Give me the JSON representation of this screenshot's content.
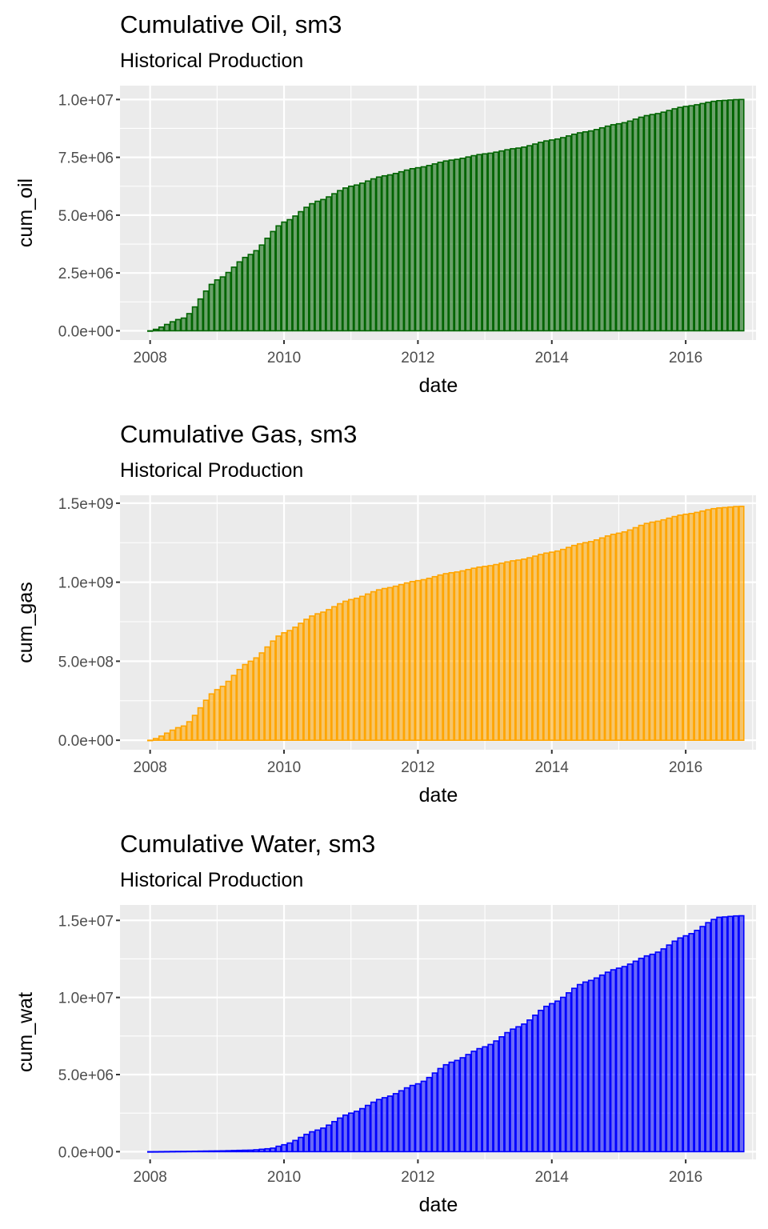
{
  "chart_data": [
    {
      "type": "bar",
      "title": "Cumulative Oil, sm3",
      "subtitle": "Historical Production",
      "xlabel": "date",
      "ylabel": "cum_oil",
      "fill_color": "#006400",
      "outline_color": "#006400",
      "xlim": [
        2007.55,
        2017.05
      ],
      "ylim": [
        -400000.0,
        10600000.0
      ],
      "x_ticks": [
        2008,
        2010,
        2012,
        2014,
        2016
      ],
      "x_tick_labels": [
        "2008",
        "2010",
        "2012",
        "2014",
        "2016"
      ],
      "y_ticks": [
        0,
        2500000,
        5000000,
        7500000,
        10000000
      ],
      "y_tick_labels": [
        "0.0e+00",
        "2.5e+06",
        "5.0e+06",
        "7.5e+06",
        "1.0e+07"
      ],
      "grid": true,
      "frequency": "monthly",
      "x_start": 2008.0,
      "x_end": 2016.8,
      "anchor_x": [
        2008.0,
        2008.5,
        2009.0,
        2009.5,
        2010.0,
        2010.5,
        2011.0,
        2011.5,
        2012.0,
        2012.5,
        2013.0,
        2013.5,
        2014.0,
        2014.5,
        2015.0,
        2015.5,
        2016.0,
        2016.5,
        2016.8
      ],
      "anchor_y": [
        0,
        550000,
        2200000,
        3300000,
        4700000,
        5600000,
        6250000,
        6700000,
        7050000,
        7380000,
        7650000,
        7900000,
        8250000,
        8600000,
        8950000,
        9350000,
        9700000,
        9950000,
        10000000
      ]
    },
    {
      "type": "bar",
      "title": "Cumulative Gas, sm3",
      "subtitle": "Historical Production",
      "xlabel": "date",
      "ylabel": "cum_gas",
      "fill_color": "#FFA500",
      "outline_color": "#FFA500",
      "xlim": [
        2007.55,
        2017.05
      ],
      "ylim": [
        -60000000.0,
        1550000000.0
      ],
      "x_ticks": [
        2008,
        2010,
        2012,
        2014,
        2016
      ],
      "x_tick_labels": [
        "2008",
        "2010",
        "2012",
        "2014",
        "2016"
      ],
      "y_ticks": [
        0,
        500000000,
        1000000000,
        1500000000
      ],
      "y_tick_labels": [
        "0.0e+00",
        "5.0e+08",
        "1.0e+09",
        "1.5e+09"
      ],
      "grid": true,
      "frequency": "monthly",
      "x_start": 2008.0,
      "x_end": 2016.8,
      "anchor_x": [
        2008.0,
        2008.5,
        2009.0,
        2009.5,
        2010.0,
        2010.5,
        2011.0,
        2011.5,
        2012.0,
        2012.5,
        2013.0,
        2013.5,
        2014.0,
        2014.5,
        2015.0,
        2015.5,
        2016.0,
        2016.5,
        2016.8
      ],
      "anchor_y": [
        0,
        90000000,
        320000000,
        500000000,
        680000000,
        800000000,
        890000000,
        960000000,
        1010000000,
        1060000000,
        1100000000,
        1140000000,
        1190000000,
        1250000000,
        1310000000,
        1380000000,
        1430000000,
        1470000000,
        1480000000
      ]
    },
    {
      "type": "bar",
      "title": "Cumulative Water, sm3",
      "subtitle": "Historical Production",
      "xlabel": "date",
      "ylabel": "cum_wat",
      "fill_color": "#0000FF",
      "outline_color": "#0000FF",
      "xlim": [
        2007.55,
        2017.05
      ],
      "ylim": [
        -500000.0,
        16000000.0
      ],
      "x_ticks": [
        2008,
        2010,
        2012,
        2014,
        2016
      ],
      "x_tick_labels": [
        "2008",
        "2010",
        "2012",
        "2014",
        "2016"
      ],
      "y_ticks": [
        0,
        5000000,
        10000000,
        15000000
      ],
      "y_tick_labels": [
        "0.0e+00",
        "5.0e+06",
        "1.0e+07",
        "1.5e+07"
      ],
      "grid": true,
      "frequency": "monthly",
      "x_start": 2008.0,
      "x_end": 2016.8,
      "anchor_x": [
        2008.0,
        2008.5,
        2009.0,
        2009.5,
        2009.8,
        2010.0,
        2010.5,
        2011.0,
        2011.5,
        2012.0,
        2012.5,
        2013.0,
        2013.5,
        2014.0,
        2014.5,
        2015.0,
        2015.5,
        2016.0,
        2016.5,
        2016.8
      ],
      "anchor_y": [
        0,
        20000,
        50000,
        100000,
        200000,
        450000,
        1400000,
        2500000,
        3500000,
        4400000,
        5800000,
        6800000,
        8100000,
        9600000,
        11000000,
        11900000,
        12800000,
        14000000,
        15200000,
        15300000
      ]
    }
  ]
}
